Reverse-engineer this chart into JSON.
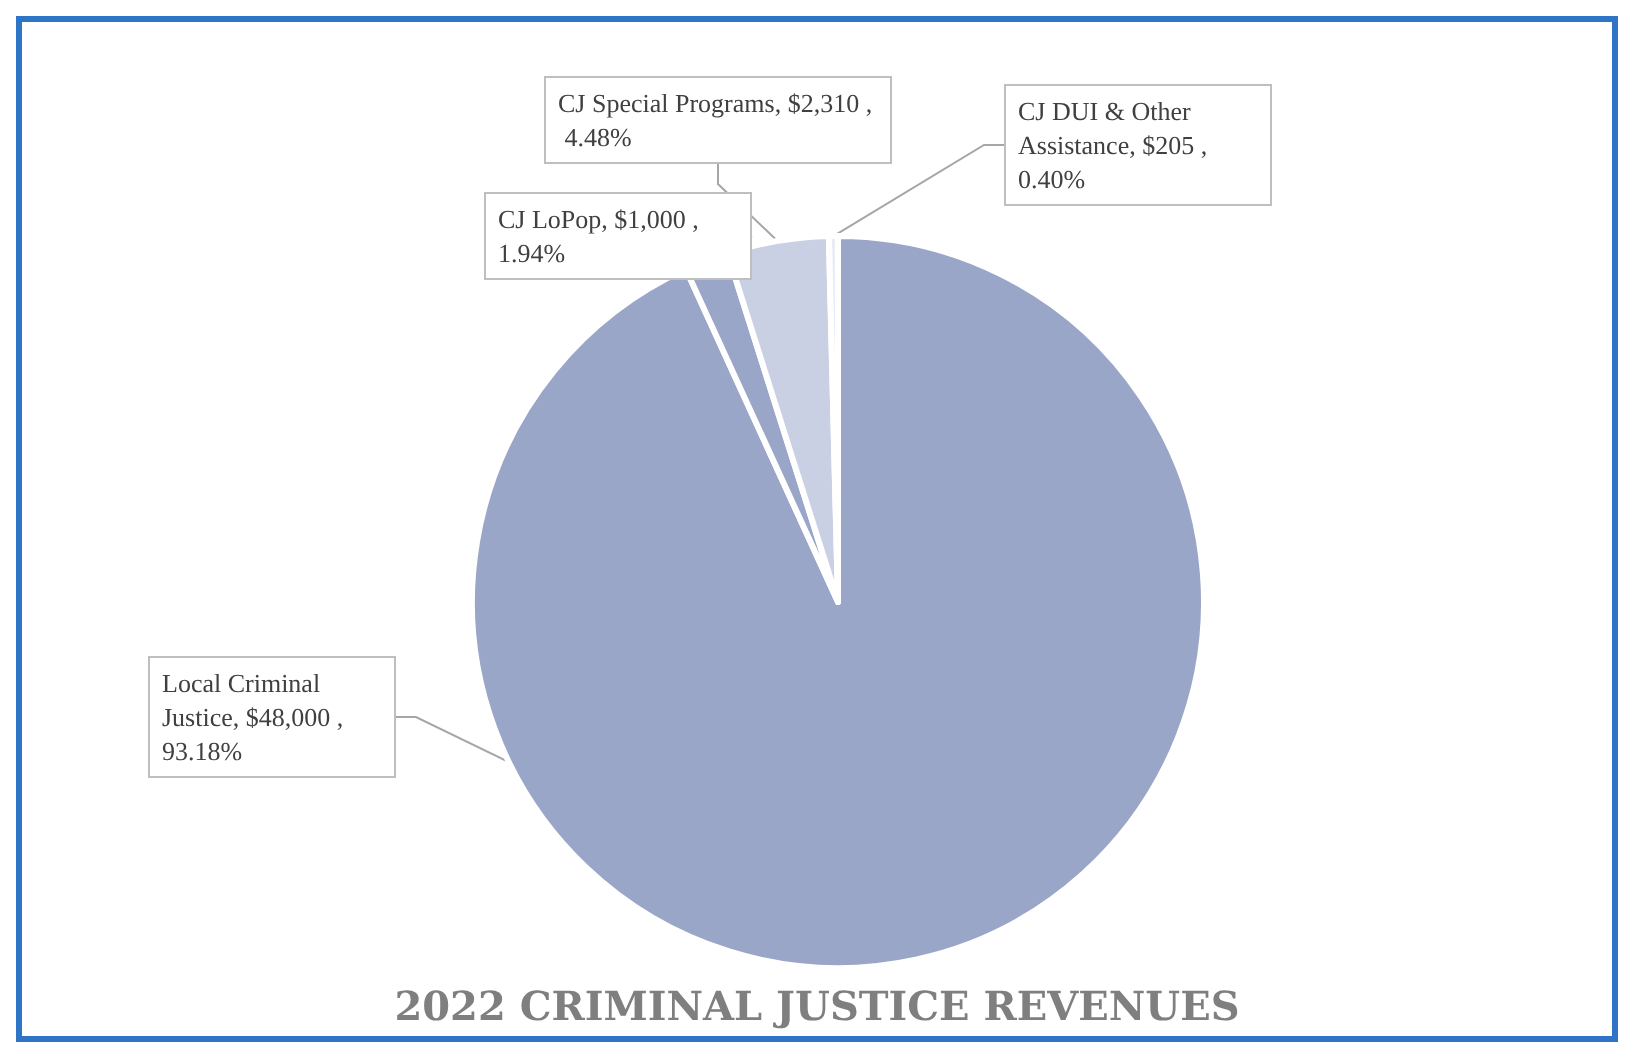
{
  "chart_data": {
    "type": "pie",
    "title": "2022 CRIMINAL JUSTICE REVENUES",
    "categories": [
      "Local Criminal Justice",
      "CJ LoPop",
      "CJ Special Programs",
      "CJ DUI & Other Assistance"
    ],
    "values": [
      48000,
      1000,
      2310,
      205
    ],
    "colors": [
      "#9aa6c8",
      "#9aa6c8",
      "#c9d0e4",
      "#e9ecf4"
    ],
    "value_labels": [
      "$48,000 , 93.18%",
      "$1,000 , 1.94%",
      "$2,310 , 4.48%",
      "$205 , 0.40%"
    ],
    "legend": false
  }
}
